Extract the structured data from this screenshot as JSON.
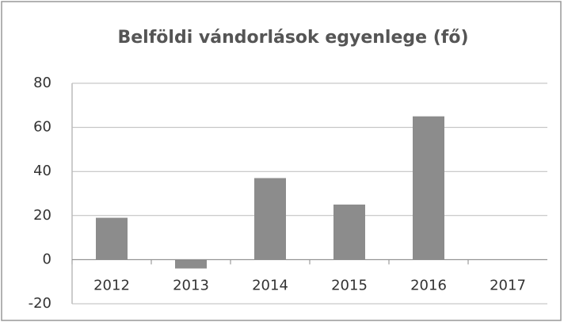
{
  "chart_data": {
    "type": "bar",
    "title": "Belföldi vándorlások egyenlege (fő)",
    "categories": [
      "2012",
      "2013",
      "2014",
      "2015",
      "2016",
      "2017"
    ],
    "values": [
      19,
      -4,
      37,
      25,
      65,
      0
    ],
    "color": "#8c8c8c",
    "ylim": [
      -20,
      80
    ],
    "yticks": [
      -20,
      0,
      20,
      40,
      60,
      80
    ],
    "grid": true
  }
}
